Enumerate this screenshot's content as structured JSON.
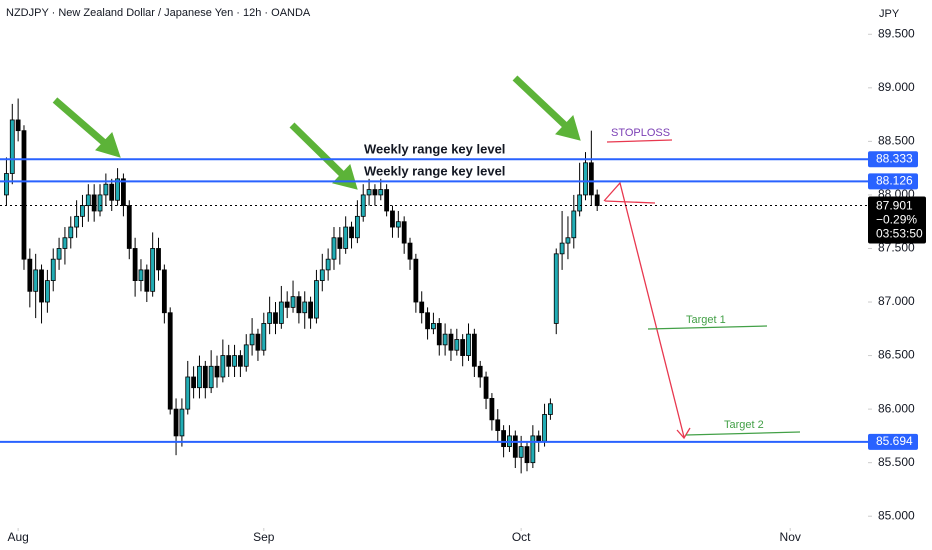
{
  "chart_data": {
    "type": "candlestick",
    "title": "NZDJPY · New Zealand Dollar / Japanese Yen · 12h · OANDA",
    "currency": "JPY",
    "x": [
      -2,
      -1,
      0,
      1,
      2,
      3,
      4,
      5,
      6,
      7,
      8,
      9,
      10,
      11,
      12,
      13,
      14,
      15,
      16,
      17,
      18,
      19,
      20,
      21,
      22,
      23,
      24,
      25,
      26,
      27,
      28,
      29,
      30,
      31,
      32,
      33,
      34,
      35,
      36,
      37,
      38,
      39,
      40,
      41,
      42,
      43,
      44,
      45,
      46,
      47,
      48,
      49,
      50,
      51,
      52,
      53,
      54,
      55,
      56,
      57,
      58,
      59,
      60,
      61,
      62,
      63,
      64,
      65,
      66,
      67,
      68,
      69,
      70,
      71,
      72,
      73,
      74,
      75,
      76,
      77,
      78,
      79,
      80,
      81,
      82,
      83,
      84,
      85,
      86,
      87,
      88,
      89,
      90,
      91,
      92,
      93,
      94,
      95,
      96,
      97,
      98,
      99
    ],
    "ohlc": [
      [
        88.0,
        88.35,
        87.9,
        88.2
      ],
      [
        88.2,
        88.85,
        88.1,
        88.7
      ],
      [
        88.7,
        88.9,
        88.5,
        88.6
      ],
      [
        88.6,
        88.65,
        87.3,
        87.4
      ],
      [
        87.4,
        87.5,
        86.95,
        87.1
      ],
      [
        87.1,
        87.45,
        86.85,
        87.3
      ],
      [
        87.3,
        87.35,
        86.8,
        87.0
      ],
      [
        87.0,
        87.3,
        86.9,
        87.2
      ],
      [
        87.2,
        87.5,
        87.1,
        87.4
      ],
      [
        87.4,
        87.6,
        87.3,
        87.5
      ],
      [
        87.5,
        87.7,
        87.35,
        87.6
      ],
      [
        87.6,
        87.8,
        87.5,
        87.7
      ],
      [
        87.7,
        87.95,
        87.6,
        87.8
      ],
      [
        87.8,
        88.0,
        87.7,
        87.9
      ],
      [
        87.9,
        88.1,
        87.75,
        88.0
      ],
      [
        88.0,
        88.1,
        87.75,
        87.85
      ],
      [
        87.85,
        88.1,
        87.8,
        88.0
      ],
      [
        88.0,
        88.2,
        87.9,
        88.1
      ],
      [
        88.1,
        88.15,
        87.85,
        87.95
      ],
      [
        87.95,
        88.25,
        87.9,
        88.15
      ],
      [
        88.15,
        88.2,
        87.8,
        87.9
      ],
      [
        87.9,
        87.95,
        87.4,
        87.5
      ],
      [
        87.5,
        87.6,
        87.05,
        87.2
      ],
      [
        87.2,
        87.4,
        87.1,
        87.3
      ],
      [
        87.3,
        87.35,
        87.0,
        87.1
      ],
      [
        87.1,
        87.65,
        87.05,
        87.5
      ],
      [
        87.5,
        87.6,
        87.2,
        87.3
      ],
      [
        87.3,
        87.35,
        86.8,
        86.9
      ],
      [
        86.9,
        86.95,
        85.95,
        86.0
      ],
      [
        86.0,
        86.1,
        85.57,
        85.75
      ],
      [
        85.75,
        86.1,
        85.65,
        86.0
      ],
      [
        86.0,
        86.45,
        85.95,
        86.3
      ],
      [
        86.3,
        86.4,
        86.1,
        86.2
      ],
      [
        86.2,
        86.5,
        86.1,
        86.4
      ],
      [
        86.4,
        86.45,
        86.1,
        86.2
      ],
      [
        86.2,
        86.55,
        86.15,
        86.4
      ],
      [
        86.4,
        86.5,
        86.2,
        86.3
      ],
      [
        86.3,
        86.65,
        86.25,
        86.5
      ],
      [
        86.5,
        86.6,
        86.3,
        86.4
      ],
      [
        86.4,
        86.6,
        86.3,
        86.5
      ],
      [
        86.5,
        86.55,
        86.3,
        86.4
      ],
      [
        86.4,
        86.7,
        86.35,
        86.6
      ],
      [
        86.6,
        86.85,
        86.5,
        86.7
      ],
      [
        86.7,
        86.75,
        86.45,
        86.55
      ],
      [
        86.55,
        86.9,
        86.5,
        86.8
      ],
      [
        86.8,
        87.05,
        86.7,
        86.9
      ],
      [
        86.9,
        87.0,
        86.7,
        86.8
      ],
      [
        86.8,
        87.15,
        86.75,
        87.0
      ],
      [
        87.0,
        87.1,
        86.85,
        86.95
      ],
      [
        86.95,
        87.2,
        86.9,
        87.05
      ],
      [
        87.05,
        87.1,
        86.8,
        86.9
      ],
      [
        86.9,
        87.1,
        86.75,
        87.0
      ],
      [
        87.0,
        87.05,
        86.75,
        86.85
      ],
      [
        86.85,
        87.3,
        86.8,
        87.2
      ],
      [
        87.2,
        87.45,
        87.1,
        87.3
      ],
      [
        87.3,
        87.5,
        87.2,
        87.4
      ],
      [
        87.4,
        87.7,
        87.3,
        87.6
      ],
      [
        87.6,
        87.7,
        87.35,
        87.5
      ],
      [
        87.5,
        87.8,
        87.45,
        87.7
      ],
      [
        87.7,
        87.75,
        87.5,
        87.6
      ],
      [
        87.6,
        87.95,
        87.55,
        87.8
      ],
      [
        87.8,
        88.1,
        87.75,
        88.0
      ],
      [
        88.0,
        88.15,
        87.9,
        88.05
      ],
      [
        88.05,
        88.1,
        87.9,
        88.0
      ],
      [
        88.0,
        88.15,
        87.95,
        88.05
      ],
      [
        88.05,
        88.1,
        87.8,
        87.85
      ],
      [
        87.85,
        87.9,
        87.6,
        87.7
      ],
      [
        87.7,
        87.85,
        87.6,
        87.75
      ],
      [
        87.75,
        87.8,
        87.45,
        87.55
      ],
      [
        87.55,
        87.6,
        87.3,
        87.4
      ],
      [
        87.4,
        87.45,
        86.9,
        87.0
      ],
      [
        87.0,
        87.1,
        86.8,
        86.9
      ],
      [
        86.9,
        86.95,
        86.65,
        86.75
      ],
      [
        86.75,
        86.9,
        86.7,
        86.8
      ],
      [
        86.8,
        86.85,
        86.5,
        86.6
      ],
      [
        86.6,
        86.8,
        86.5,
        86.7
      ],
      [
        86.7,
        86.75,
        86.45,
        86.55
      ],
      [
        86.55,
        86.75,
        86.5,
        86.65
      ],
      [
        86.65,
        86.7,
        86.4,
        86.5
      ],
      [
        86.5,
        86.8,
        86.45,
        86.7
      ],
      [
        86.7,
        86.75,
        86.3,
        86.4
      ],
      [
        86.4,
        86.45,
        86.2,
        86.3
      ],
      [
        86.3,
        86.35,
        86.0,
        86.1
      ],
      [
        86.1,
        86.15,
        85.8,
        85.9
      ],
      [
        85.9,
        86.0,
        85.7,
        85.8
      ],
      [
        85.8,
        85.85,
        85.55,
        85.65
      ],
      [
        85.65,
        85.85,
        85.6,
        85.75
      ],
      [
        85.75,
        85.8,
        85.45,
        85.55
      ],
      [
        85.55,
        85.75,
        85.4,
        85.65
      ],
      [
        85.65,
        85.7,
        85.42,
        85.5
      ],
      [
        85.5,
        85.85,
        85.45,
        85.75
      ],
      [
        85.75,
        85.8,
        85.6,
        85.7
      ],
      [
        85.7,
        86.05,
        85.65,
        85.95
      ],
      [
        85.95,
        86.1,
        85.9,
        86.05
      ],
      [
        86.8,
        87.5,
        86.7,
        87.45
      ],
      [
        87.45,
        87.85,
        87.3,
        87.55
      ],
      [
        87.55,
        87.8,
        87.4,
        87.6
      ],
      [
        87.6,
        88.0,
        87.5,
        87.85
      ],
      [
        87.85,
        88.3,
        87.8,
        88.0
      ],
      [
        88.0,
        88.4,
        87.95,
        88.3
      ],
      [
        88.3,
        88.6,
        87.9,
        88.0
      ],
      [
        88.0,
        88.05,
        87.85,
        87.9
      ]
    ],
    "up_color": "#22adb5",
    "down_color": "#000000",
    "xlim": [
      -3.1,
      145.3
    ],
    "xticks": [
      {
        "value": 0,
        "label": "Aug"
      },
      {
        "value": 42,
        "label": "Sep"
      },
      {
        "value": 86,
        "label": "Oct"
      },
      {
        "value": 132,
        "label": "Nov"
      }
    ],
    "ylim": [
      84.89,
      89.82
    ],
    "yticks": [
      {
        "value": 89.5,
        "label": "89.500"
      },
      {
        "value": 89,
        "label": "89.000"
      },
      {
        "value": 88.5,
        "label": "88.500"
      },
      {
        "value": 88,
        "label": "88.000"
      },
      {
        "value": 87.5,
        "label": "87.500"
      },
      {
        "value": 87,
        "label": "87.000"
      },
      {
        "value": 86.5,
        "label": "86.500"
      },
      {
        "value": 86,
        "label": "86.000"
      },
      {
        "value": 85.5,
        "label": "85.500"
      },
      {
        "value": 85,
        "label": "85.000"
      }
    ],
    "levels": [
      88.333,
      88.126,
      85.694
    ],
    "level_color": "#2962ff",
    "last_price": 87.901,
    "change": "−0.29%",
    "countdown": "03:53:50",
    "annotations": {
      "key_level_1": "Weekly range key level",
      "key_level_2": "Weekly range key level",
      "stoploss": "STOPLOSS",
      "target_1": "Target 1",
      "target_2": "Target 2"
    }
  }
}
